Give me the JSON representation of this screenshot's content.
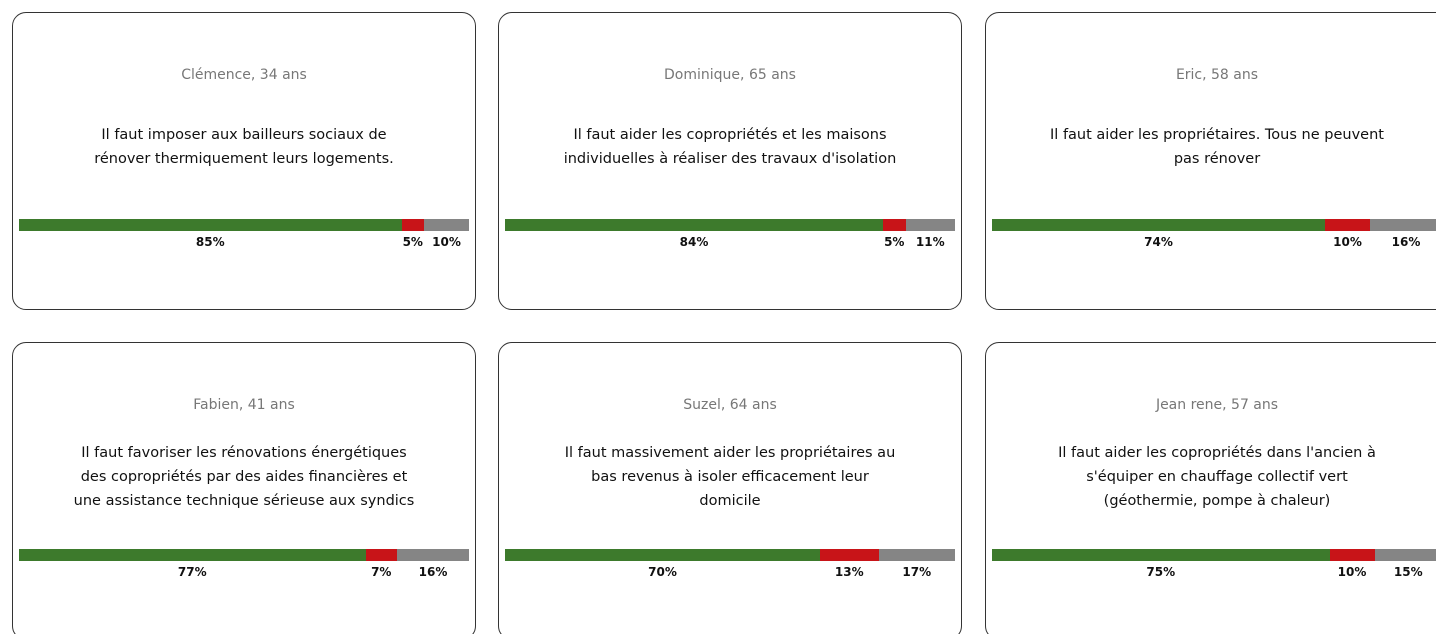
{
  "segment_colors": [
    "#3d7a2c",
    "#c81418",
    "#858585"
  ],
  "cards": [
    {
      "author": "Clémence, 34 ans",
      "text": "Il faut imposer aux bailleurs sociaux de rénover thermiquement leurs logements.",
      "values": [
        85,
        5,
        10
      ],
      "value_labels": [
        "85%",
        "5%",
        "10%"
      ]
    },
    {
      "author": "Dominique, 65 ans",
      "text": "Il faut aider les copropriétés et les maisons individuelles à réaliser des travaux d'isolation",
      "values": [
        84,
        5,
        11
      ],
      "value_labels": [
        "84%",
        "5%",
        "11%"
      ]
    },
    {
      "author": "Eric, 58 ans",
      "text": "Il faut aider les propriétaires. Tous ne peuvent pas rénover",
      "values": [
        74,
        10,
        16
      ],
      "value_labels": [
        "74%",
        "10%",
        "16%"
      ]
    },
    {
      "author": "Fabien, 41 ans",
      "text": "Il faut favoriser les rénovations énergétiques des copropriétés par des aides financières et une assistance technique sérieuse aux syndics",
      "values": [
        77,
        7,
        16
      ],
      "value_labels": [
        "77%",
        "7%",
        "16%"
      ]
    },
    {
      "author": "Suzel, 64 ans",
      "text": "Il faut massivement aider les propriétaires au bas revenus à isoler efficacement leur domicile",
      "values": [
        70,
        13,
        17
      ],
      "value_labels": [
        "70%",
        "13%",
        "17%"
      ]
    },
    {
      "author": "Jean rene, 57 ans",
      "text": "Il faut aider les copropriétés dans l'ancien à s'équiper en chauffage collectif vert (géothermie, pompe à chaleur)",
      "values": [
        75,
        10,
        15
      ],
      "value_labels": [
        "75%",
        "10%",
        "15%"
      ]
    }
  ]
}
